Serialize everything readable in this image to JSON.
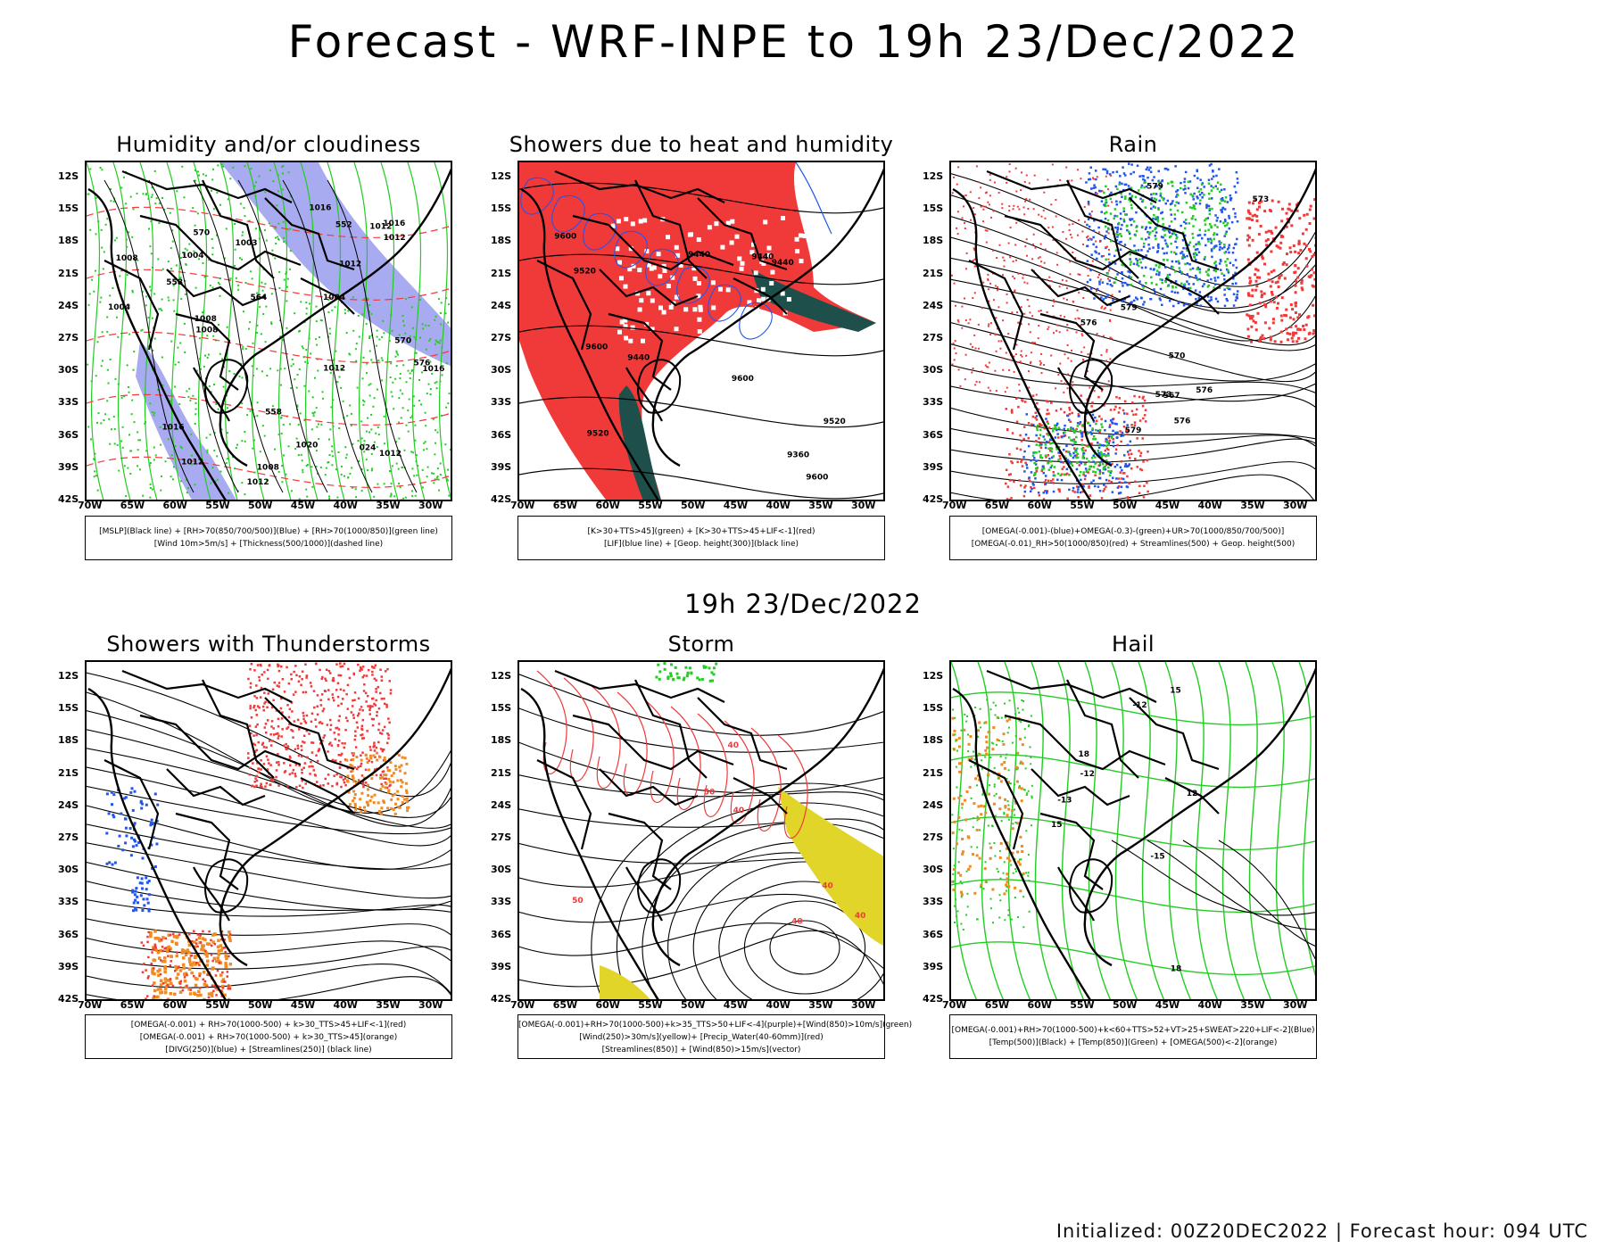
{
  "header": {
    "title": "Forecast - WRF-INPE to 19h 23/Dec/2022"
  },
  "row2": {
    "subtitle": "19h 23/Dec/2022"
  },
  "axes": {
    "lat": [
      "12S",
      "15S",
      "18S",
      "21S",
      "24S",
      "27S",
      "30S",
      "33S",
      "36S",
      "39S",
      "42S"
    ],
    "lon": [
      "70W",
      "65W",
      "60W",
      "55W",
      "50W",
      "45W",
      "40W",
      "35W",
      "30W"
    ]
  },
  "colors": {
    "red": "#f03a3a",
    "blue_shade": "#9a9cee",
    "green": "#22cc22",
    "dark_teal": "#1f4f4a",
    "yellow": "#e2d52a",
    "orange": "#f08a22",
    "blue": "#2255ee",
    "purple": "#8833cc"
  },
  "panels": [
    {
      "title": "Humidity and/or cloudiness",
      "legend": [
        "[MSLP](Black line) + [RH>70(850/700/500)](Blue) + [RH>70(1000/850)](green line)",
        "[Wind 10m>5m/s] + [Thickness(500/1000)](dashed line)"
      ],
      "labels": [
        "1008",
        "1004",
        "1004",
        "1008",
        "1012",
        "1012",
        "1012",
        "1008",
        "1016",
        "1016",
        "576",
        "570",
        "1012",
        "1016",
        "1004",
        "1012",
        "1008",
        "1003",
        "1012",
        "1020",
        "024",
        "570",
        "564",
        "558",
        "552",
        "558",
        "1012",
        "1016"
      ]
    },
    {
      "title": "Showers due to heat and humidity",
      "legend": [
        "[K>30+TTS>45](green) + [K>30+TTS>45+LIF<-1](red)",
        "[LIF](blue line) + [Geop. height(300)](black line)"
      ],
      "labels": [
        "9600",
        "9600",
        "9600",
        "9600",
        "9520",
        "9520",
        "9520",
        "9440",
        "9440",
        "9440",
        "9440",
        "9360"
      ]
    },
    {
      "title": "Rain",
      "legend": [
        "[OMEGA(-0.001)-(blue)+OMEGA(-0.3)-(green)+UR>70(1000/850/700/500)]",
        "[OMEGA(-0.01)_RH>50(1000/850)(red) + Streamlines(500) + Geop. height(500)"
      ],
      "labels": [
        "579",
        "579",
        "576",
        "573",
        "576",
        "570",
        "579",
        "573",
        "576",
        "567"
      ]
    },
    {
      "title": "Showers with Thunderstorms",
      "legend": [
        "[OMEGA(-0.001) + RH>70(1000-500) + k>30_TTS>45+LIF<-1](red)",
        "[OMEGA(-0.001) + RH>70(1000-500) + k>30_TTS>45](orange)",
        "[DIVG(250)](blue) + [Streamlines(250)] (black line)"
      ],
      "labels": []
    },
    {
      "title": "Storm",
      "legend": [
        "[OMEGA(-0.001)+RH>70(1000-500)+k>35_TTS>50+LIF<-4](purple)+[Wind(850)>10m/s](green)",
        "[Wind(250)>30m/s](yellow)+ [Precip_Water(40-60mm)](red)",
        "[Streamlines(850)] + [Wind(850)>15m/s](vector)"
      ],
      "labels": [
        "50",
        "40",
        "40",
        "40",
        "40",
        "40",
        "50"
      ]
    },
    {
      "title": "Hail",
      "legend": [
        "[OMEGA(-0.001)+RH>70(1000-500)+k<60+TTS>52+VT>25+SWEAT>220+LIF<-2](Blue)",
        "[Temp(500)](Black) + [Temp(850)](Green) + [OMEGA(500)<-2](orange)"
      ],
      "labels": [
        "-12",
        "-15",
        "-12",
        "-13",
        "15",
        "18",
        "15",
        "12",
        "18"
      ]
    }
  ],
  "footer": {
    "text": "Initialized: 00Z20DEC2022 | Forecast hour: 094 UTC"
  }
}
